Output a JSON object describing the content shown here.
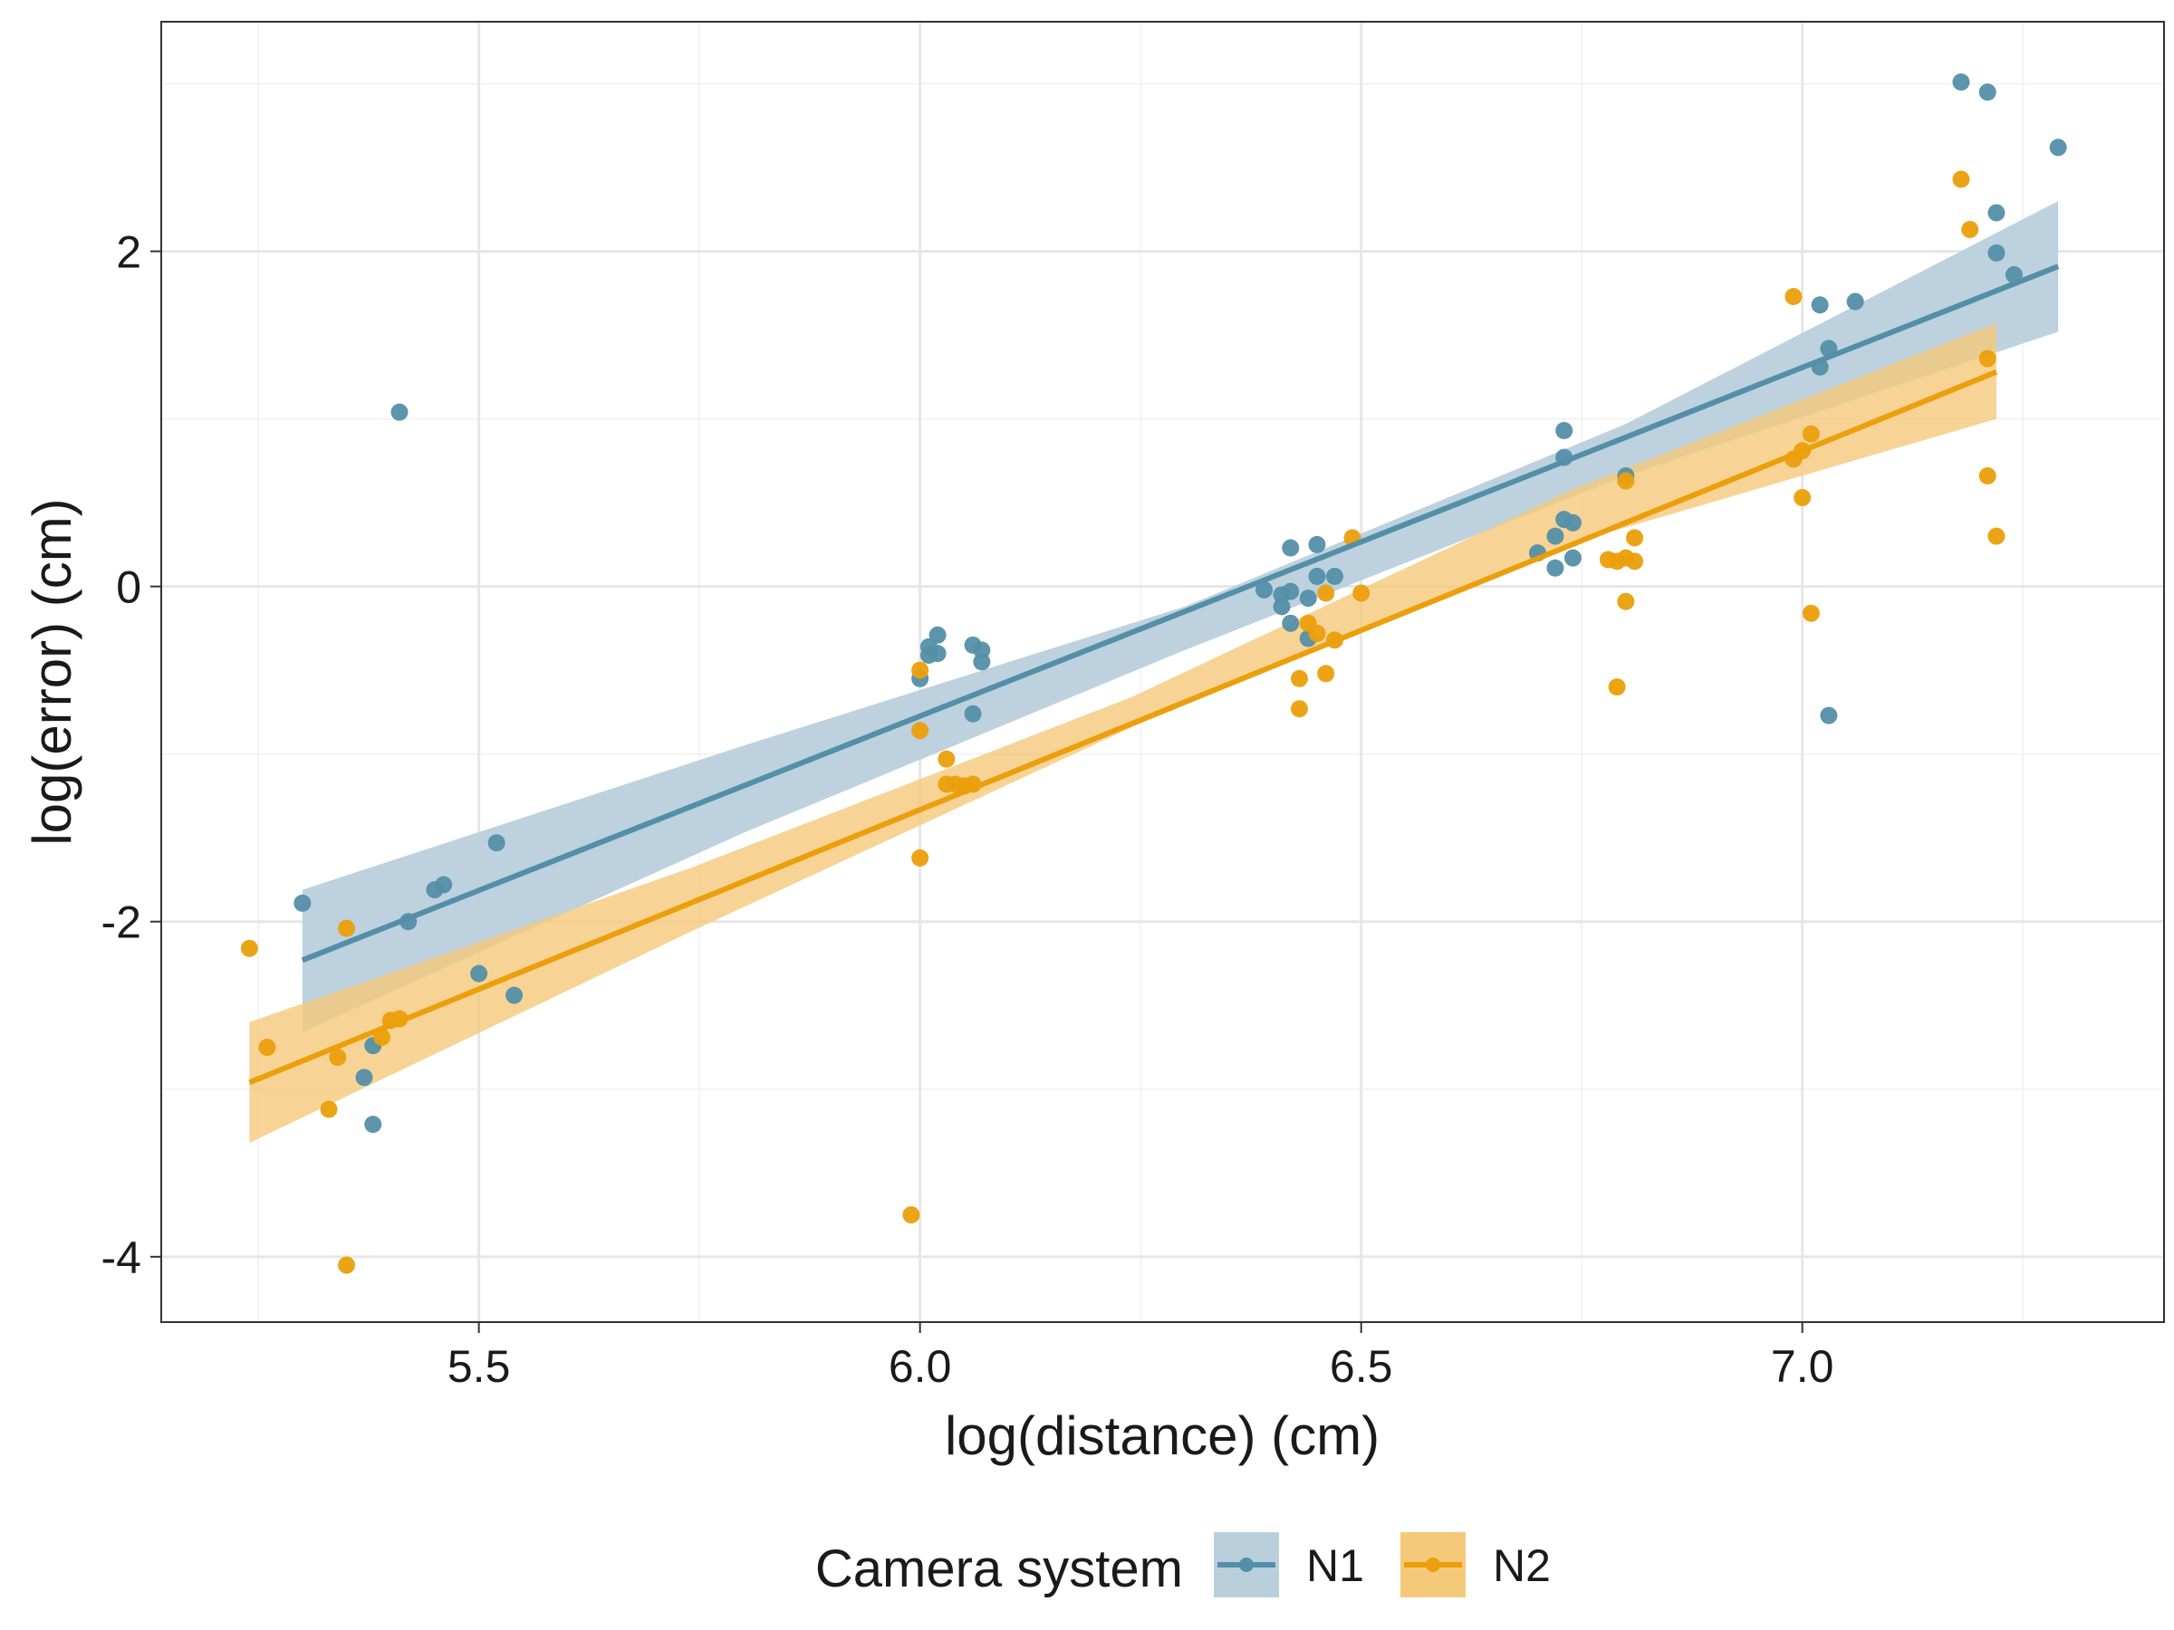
{
  "chart_data": {
    "type": "scatter",
    "title": "",
    "xlabel": "log(distance) (cm)",
    "ylabel": "log(error) (cm)",
    "xlim": [
      5.14,
      7.41
    ],
    "ylim": [
      -4.39,
      3.37
    ],
    "x_ticks": [
      5.5,
      6.0,
      6.5,
      7.0
    ],
    "x_tick_labels": [
      "5.5",
      "6.0",
      "6.5",
      "7.0"
    ],
    "y_ticks": [
      -4,
      -2,
      0,
      2
    ],
    "y_tick_labels": [
      "-4",
      "-2",
      "0",
      "2"
    ],
    "grid": true,
    "legend": {
      "title": "Camera system",
      "position": "bottom"
    },
    "series": [
      {
        "name": "N1",
        "color": "#548fa8",
        "ribbon_color": "#b9d0dc",
        "fit": {
          "x_start": 5.3,
          "y_start": -2.23,
          "x_end": 7.29,
          "y_end": 1.91
        },
        "ci_band": [
          {
            "x": 5.3,
            "lo": -2.66,
            "hi": -1.81
          },
          {
            "x": 5.8,
            "lo": -1.47,
            "hi": -0.95
          },
          {
            "x": 6.3,
            "lo": -0.38,
            "hi": -0.12
          },
          {
            "x": 6.8,
            "lo": 0.66,
            "hi": 0.97
          },
          {
            "x": 7.29,
            "lo": 1.52,
            "hi": 2.3
          }
        ],
        "points": [
          [
            5.3,
            -1.89
          ],
          [
            5.41,
            1.04
          ],
          [
            5.38,
            -3.21
          ],
          [
            5.37,
            -2.93
          ],
          [
            5.38,
            -2.74
          ],
          [
            5.42,
            -2.0
          ],
          [
            5.45,
            -1.81
          ],
          [
            5.46,
            -1.78
          ],
          [
            5.5,
            -2.31
          ],
          [
            5.52,
            -1.53
          ],
          [
            5.54,
            -2.44
          ],
          [
            6.0,
            -0.55
          ],
          [
            6.01,
            -0.36
          ],
          [
            6.01,
            -0.41
          ],
          [
            6.02,
            -0.29
          ],
          [
            6.02,
            -0.4
          ],
          [
            6.06,
            -0.35
          ],
          [
            6.07,
            -0.38
          ],
          [
            6.07,
            -0.45
          ],
          [
            6.06,
            -0.76
          ],
          [
            6.39,
            -0.02
          ],
          [
            6.41,
            -0.12
          ],
          [
            6.41,
            -0.05
          ],
          [
            6.42,
            -0.22
          ],
          [
            6.42,
            -0.03
          ],
          [
            6.42,
            0.23
          ],
          [
            6.44,
            -0.07
          ],
          [
            6.44,
            -0.31
          ],
          [
            6.45,
            0.06
          ],
          [
            6.45,
            0.25
          ],
          [
            6.47,
            0.06
          ],
          [
            6.7,
            0.2
          ],
          [
            6.72,
            0.11
          ],
          [
            6.72,
            0.3
          ],
          [
            6.73,
            0.77
          ],
          [
            6.73,
            0.93
          ],
          [
            6.73,
            0.4
          ],
          [
            6.74,
            0.38
          ],
          [
            6.74,
            0.17
          ],
          [
            6.8,
            0.66
          ],
          [
            7.02,
            1.68
          ],
          [
            7.03,
            1.42
          ],
          [
            7.02,
            1.31
          ],
          [
            7.03,
            -0.77
          ],
          [
            7.06,
            1.7
          ],
          [
            7.18,
            3.01
          ],
          [
            7.21,
            2.95
          ],
          [
            7.22,
            2.23
          ],
          [
            7.22,
            1.99
          ],
          [
            7.24,
            1.86
          ],
          [
            7.29,
            2.62
          ]
        ]
      },
      {
        "name": "N2",
        "color": "#eb9f0b",
        "ribbon_color": "#f5c97a",
        "fit": {
          "x_start": 5.24,
          "y_start": -2.96,
          "x_end": 7.22,
          "y_end": 1.28
        },
        "ci_band": [
          {
            "x": 5.24,
            "lo": -3.32,
            "hi": -2.6
          },
          {
            "x": 5.74,
            "lo": -2.06,
            "hi": -1.68
          },
          {
            "x": 6.24,
            "lo": -0.84,
            "hi": -0.66
          },
          {
            "x": 6.74,
            "lo": 0.26,
            "hi": 0.58
          },
          {
            "x": 7.22,
            "lo": 1.0,
            "hi": 1.57
          }
        ],
        "points": [
          [
            5.24,
            -2.16
          ],
          [
            5.26,
            -2.75
          ],
          [
            5.33,
            -3.12
          ],
          [
            5.34,
            -2.81
          ],
          [
            5.35,
            -2.04
          ],
          [
            5.35,
            -4.05
          ],
          [
            5.39,
            -2.69
          ],
          [
            5.4,
            -2.59
          ],
          [
            5.41,
            -2.58
          ],
          [
            5.99,
            -3.75
          ],
          [
            6.0,
            -0.5
          ],
          [
            6.0,
            -1.62
          ],
          [
            6.0,
            -0.86
          ],
          [
            6.03,
            -1.03
          ],
          [
            6.03,
            -1.18
          ],
          [
            6.04,
            -1.18
          ],
          [
            6.05,
            -1.19
          ],
          [
            6.06,
            -1.18
          ],
          [
            6.43,
            -0.55
          ],
          [
            6.43,
            -0.73
          ],
          [
            6.44,
            -0.22
          ],
          [
            6.45,
            -0.28
          ],
          [
            6.46,
            -0.52
          ],
          [
            6.46,
            -0.04
          ],
          [
            6.47,
            -0.32
          ],
          [
            6.49,
            0.29
          ],
          [
            6.5,
            -0.04
          ],
          [
            6.78,
            0.16
          ],
          [
            6.79,
            0.15
          ],
          [
            6.79,
            -0.6
          ],
          [
            6.8,
            -0.09
          ],
          [
            6.8,
            0.63
          ],
          [
            6.8,
            0.17
          ],
          [
            6.81,
            0.15
          ],
          [
            6.81,
            0.29
          ],
          [
            6.99,
            1.73
          ],
          [
            6.99,
            0.76
          ],
          [
            7.0,
            0.81
          ],
          [
            7.0,
            0.53
          ],
          [
            7.01,
            -0.16
          ],
          [
            7.01,
            0.91
          ],
          [
            7.18,
            2.43
          ],
          [
            7.19,
            2.13
          ],
          [
            7.21,
            0.66
          ],
          [
            7.21,
            1.36
          ],
          [
            7.22,
            0.3
          ]
        ]
      }
    ]
  }
}
